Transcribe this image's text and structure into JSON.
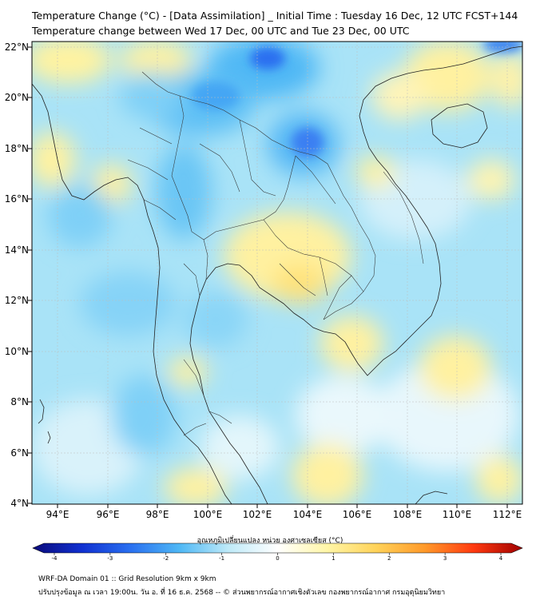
{
  "title_line1": "Temperature Change (°C) - [Data Assimilation] _ Initial Time : Tuesday 16 Dec, 12 UTC FCST+144",
  "title_line2": "Temperature change between Wed 17 Dec, 00 UTC and Tue 23 Dec, 00 UTC",
  "lat_labels": [
    "22°N",
    "20°N",
    "18°N",
    "16°N",
    "14°N",
    "12°N",
    "10°N",
    "8°N",
    "6°N",
    "4°N"
  ],
  "lon_labels": [
    "94°E",
    "96°E",
    "98°E",
    "100°E",
    "102°E",
    "104°E",
    "106°E",
    "108°E",
    "110°E",
    "112°E"
  ],
  "colorbar": {
    "title": "อุณหภูมิเปลี่ยนแปลง หน่วย องศาเซลเซียส (°C)",
    "ticks": [
      "-4",
      "-3",
      "-2",
      "-1",
      "0",
      "1",
      "2",
      "3",
      "4"
    ],
    "colors": [
      "#0a0a7a",
      "#1030d0",
      "#2a70f0",
      "#4fb8f5",
      "#bfeaf8",
      "#ffffff",
      "#fff6a8",
      "#ffd35a",
      "#ff9a2a",
      "#ff3a10",
      "#a00000"
    ]
  },
  "footer_line1": "WRF-DA Domain 01 :: Grid Resolution 9km x 9km",
  "footer_line2": "ปรับปรุงข้อมูล ณ เวลา 19:00น. วัน อ. ที่ 16 ธ.ค. 2568 -- © ส่วนพยากรณ์อากาศเชิงตัวเลข กองพยากรณ์อากาศ กรมอุตุนิยมวิทยา"
}
